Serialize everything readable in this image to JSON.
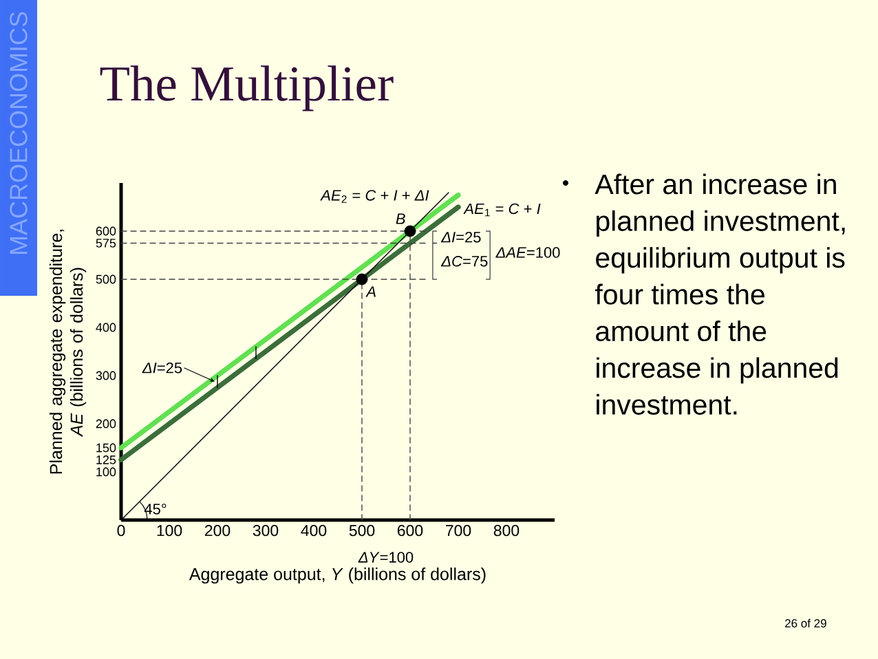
{
  "chart_data": {
    "type": "line",
    "title": "The Multiplier",
    "xlabel": "Aggregate output, *Y* (billions of dollars)",
    "ylabel": "Planned aggregate expenditure, *AE* (billions of dollars)",
    "xlim": [
      0,
      900
    ],
    "ylim": [
      0,
      700
    ],
    "xticks": [
      0,
      100,
      200,
      300,
      400,
      500,
      600,
      700,
      800
    ],
    "yticks": [
      100,
      125,
      150,
      200,
      300,
      400,
      500,
      575,
      600
    ],
    "series": [
      {
        "name": "*AE*$_{1}$ = *C* + *I*",
        "color": "#3b6e3b",
        "x": [
          0,
          700
        ],
        "values": [
          125,
          650
        ]
      },
      {
        "name": "*AE*$_{2}$ = *C* + *I* + *ΔI*",
        "color": "#62e052",
        "x": [
          0,
          700
        ],
        "values": [
          150,
          675
        ]
      },
      {
        "color": "#000000",
        "x": [
          0,
          680
        ],
        "values": [
          0,
          680
        ]
      },
      {
        "color": "#444444",
        "line_style": "dashed",
        "x": [
          0,
          640
        ],
        "values": [
          600,
          600
        ]
      },
      {
        "color": "#444444",
        "line_style": "dashed",
        "x": [
          0,
          640
        ],
        "values": [
          575,
          575
        ]
      },
      {
        "color": "#444444",
        "line_style": "dashed",
        "x": [
          0,
          640
        ],
        "values": [
          500,
          500
        ]
      },
      {
        "color": "#444444",
        "line_style": "dashed",
        "x": [
          500,
          500
        ],
        "values": [
          0,
          500
        ]
      },
      {
        "color": "#444444",
        "line_style": "dashed",
        "x": [
          600,
          600
        ],
        "values": [
          0,
          600
        ]
      },
      {
        "color": "#555555",
        "x": [
          655,
          647,
          647,
          655
        ],
        "values": [
          600,
          600,
          575,
          575
        ]
      },
      {
        "color": "#555555",
        "x": [
          655,
          647,
          647,
          655
        ],
        "values": [
          575,
          575,
          500,
          500
        ]
      },
      {
        "color": "#555555",
        "x": [
          758,
          766,
          766,
          758
        ],
        "values": [
          600,
          600,
          500,
          500
        ]
      },
      {
        "color": "#000000",
        "x": [
          200,
          200
        ],
        "values": [
          275,
          300
        ]
      },
      {
        "color": "#000000",
        "x": [
          280,
          280
        ],
        "values": [
          335,
          360
        ]
      },
      {
        "type": "scatter",
        "color": "#000000",
        "marker": "circle",
        "x": [
          500,
          600
        ],
        "values": [
          500,
          600
        ]
      }
    ],
    "annotations": [
      "MACROECONOMICS",
      "After an increase in planned investment, equilibrium output is four times the amount of the increase in planned investment.",
      "26 of 29",
      "*ΔY*=100",
      {
        "text": "*A*",
        "x": 500,
        "y": 500
      },
      {
        "text": "*B*",
        "x": 600,
        "y": 600
      },
      {
        "text": "*ΔI*=25",
        "x": 647,
        "y": 587.5
      },
      {
        "text": "*ΔC*=75",
        "x": 647,
        "y": 537.5
      },
      {
        "text": "*ΔAE*=100",
        "x": 766,
        "y": 550
      },
      {
        "text": "*ΔI*=25",
        "x": 200,
        "y": 287.5
      },
      {
        "text": "45°",
        "x": 0,
        "y": 0
      }
    ]
  }
}
